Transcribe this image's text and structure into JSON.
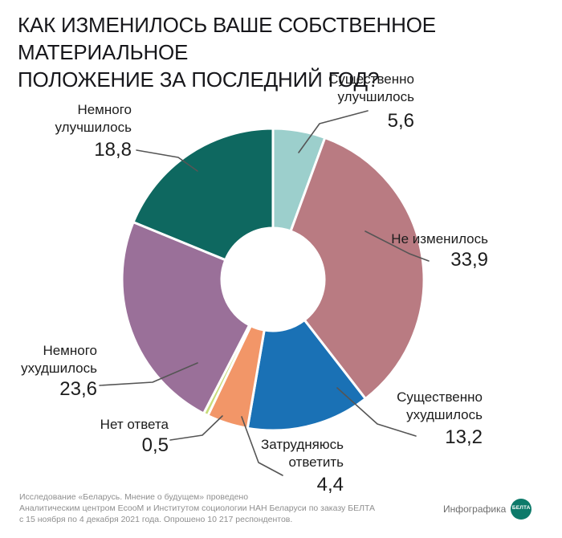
{
  "title": {
    "line1": "КАК ИЗМЕНИЛОСЬ ВАШЕ СОБСТВЕННОЕ МАТЕРИАЛЬНОЕ",
    "line2": "ПОЛОЖЕНИЕ ЗА ПОСЛЕДНИЙ ГОД?"
  },
  "chart_data": {
    "type": "pie",
    "variant": "donut",
    "title": "КАК ИЗМЕНИЛОСЬ ВАШЕ СОБСТВЕННОЕ МАТЕРИАЛЬНОЕ ПОЛОЖЕНИЕ ЗА ПОСЛЕДНИЙ ГОД?",
    "slices": [
      {
        "label_lines": [
          "Существенно",
          "улучшилось"
        ],
        "value": 5.6,
        "value_text": "5,6",
        "color": "#9ccfcc"
      },
      {
        "label_lines": [
          "Не изменилось"
        ],
        "value": 33.9,
        "value_text": "33,9",
        "color": "#b97b82"
      },
      {
        "label_lines": [
          "Существенно",
          "ухудшилось"
        ],
        "value": 13.2,
        "value_text": "13,2",
        "color": "#1a71b5"
      },
      {
        "label_lines": [
          "Затрудняюсь",
          "ответить"
        ],
        "value": 4.4,
        "value_text": "4,4",
        "color": "#f29668"
      },
      {
        "label_lines": [
          "Нет ответа"
        ],
        "value": 0.5,
        "value_text": "0,5",
        "color": "#c8dc7a"
      },
      {
        "label_lines": [
          "Немного",
          "ухудшилось"
        ],
        "value": 23.6,
        "value_text": "23,6",
        "color": "#9a7099"
      },
      {
        "label_lines": [
          "Немного",
          "улучшилось"
        ],
        "value": 18.8,
        "value_text": "18,8",
        "color": "#0e6860"
      }
    ]
  },
  "footer": {
    "line1": "Исследование «Беларусь. Мнение о будущем» проведено",
    "line2": "Аналитическим центром EcooM и Институтом социологии НАН Беларуси по заказу БЕЛТА",
    "line3": "с 15 ноября по 4 декабря 2021 года. Опрошено 10 217 респондентов."
  },
  "brand": {
    "label": "Инфографика",
    "logo_text": "БЕЛТА"
  }
}
